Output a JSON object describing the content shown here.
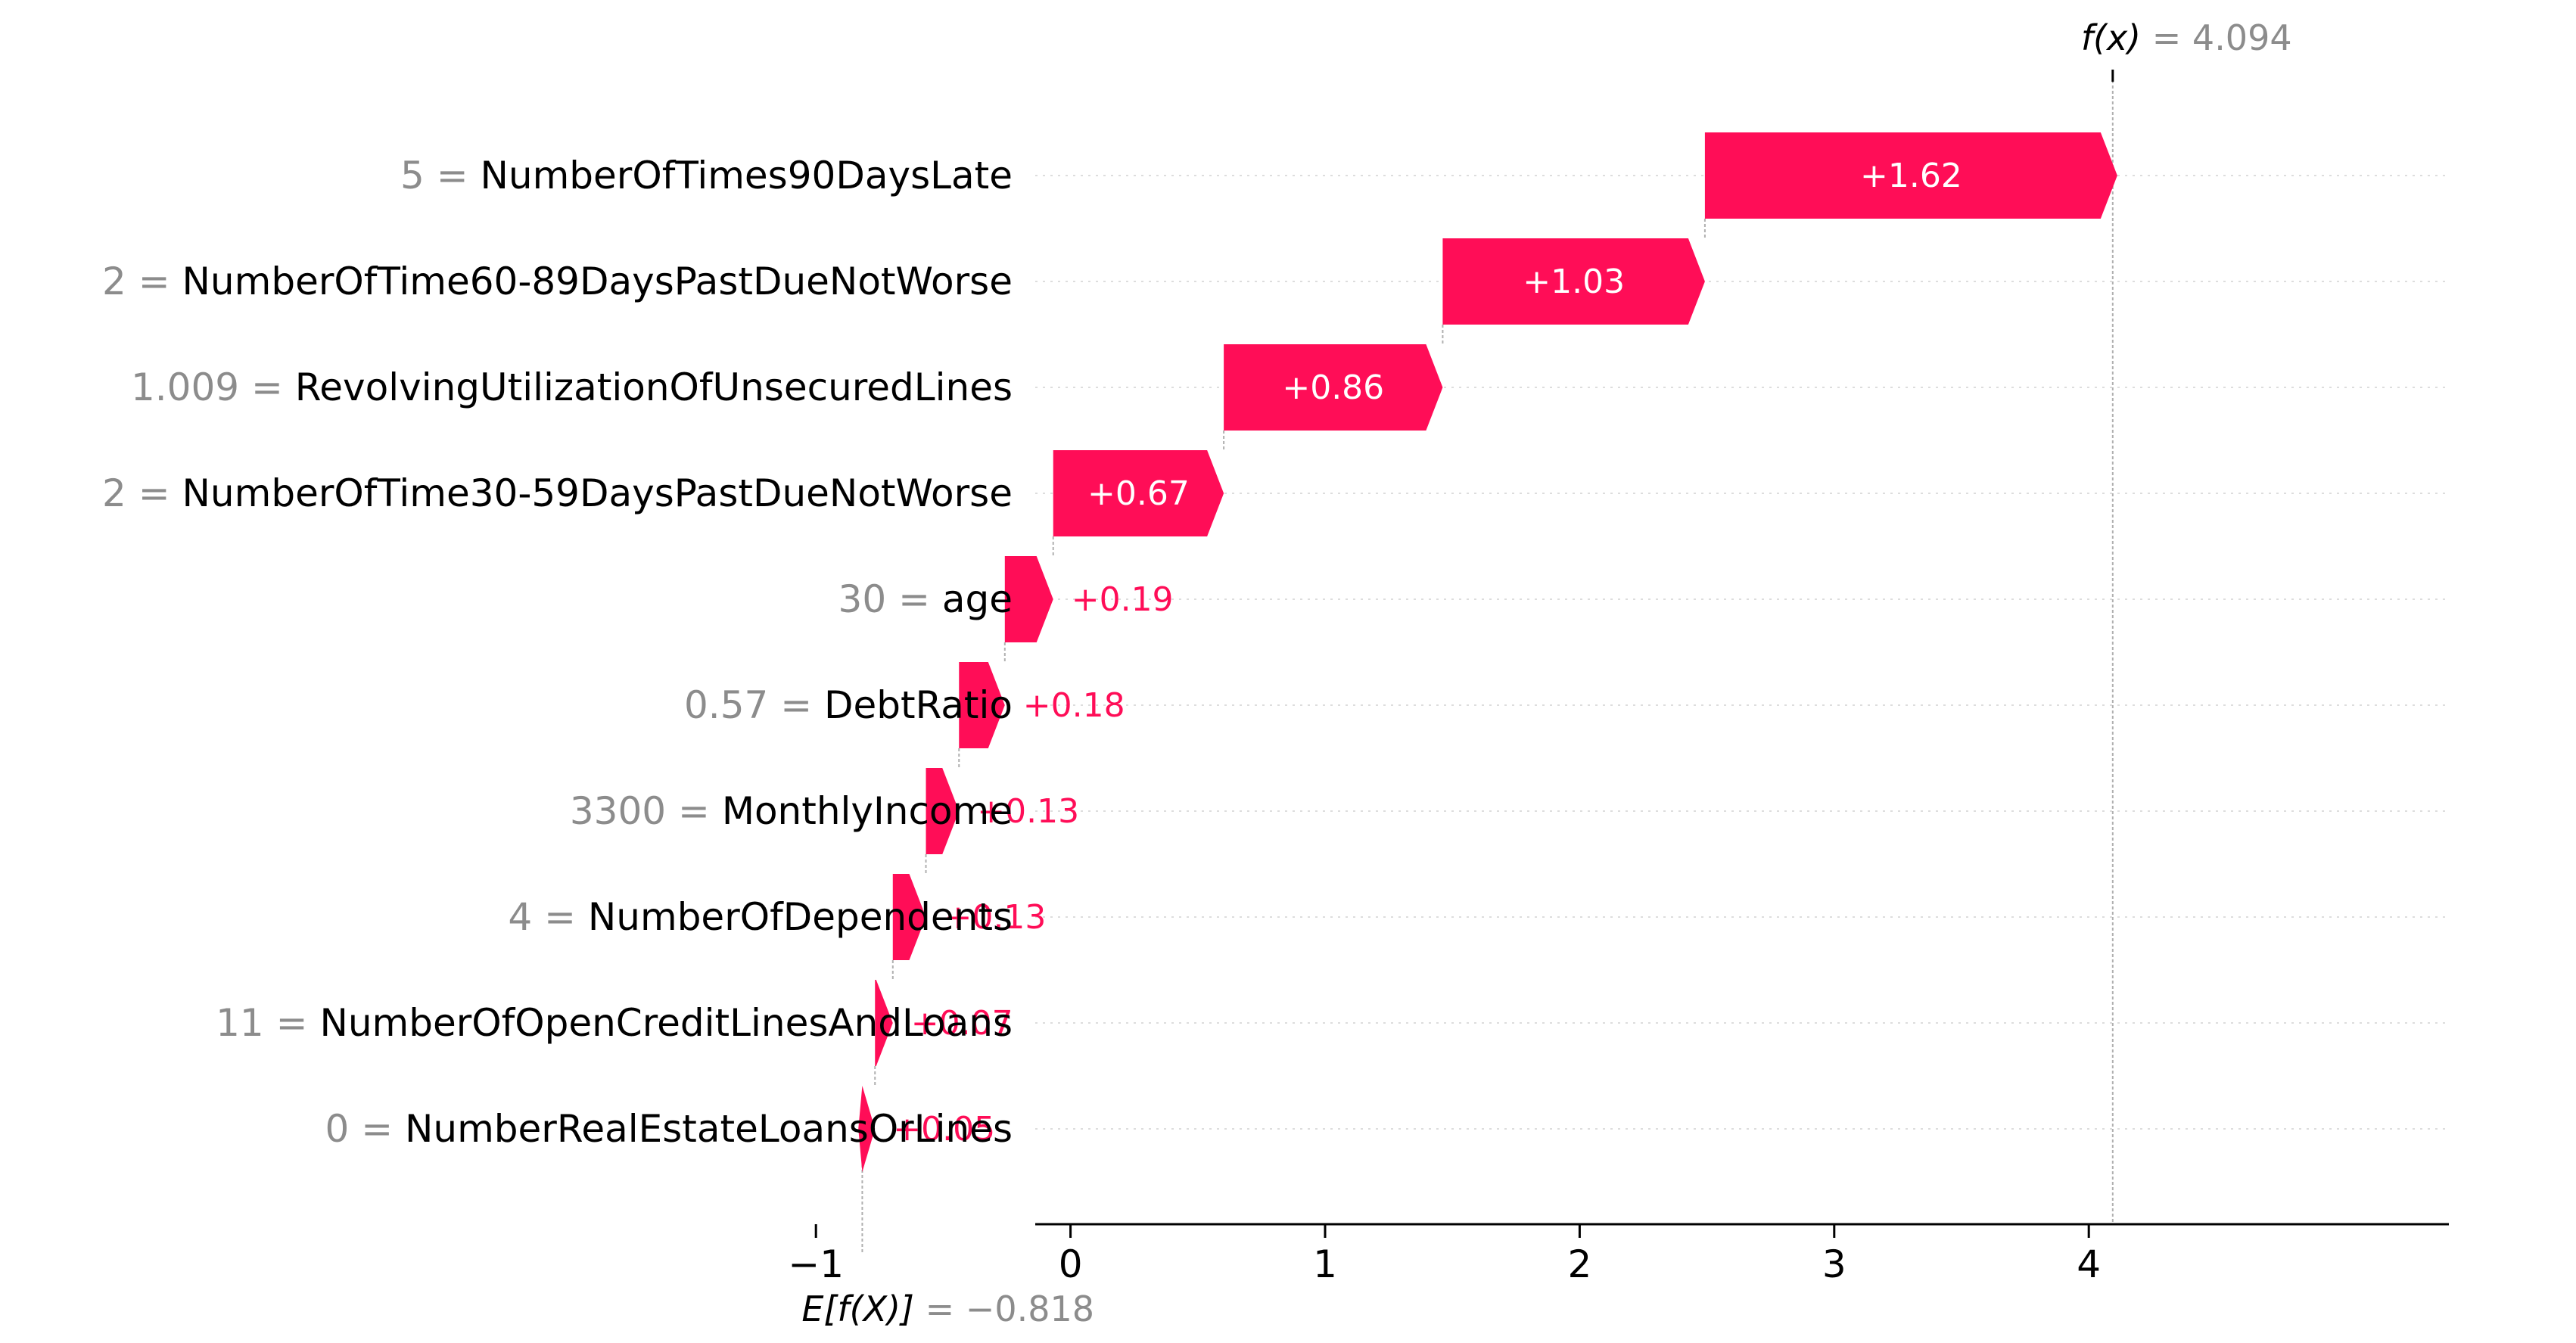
{
  "chart_data": {
    "type": "bar",
    "subtype": "waterfall",
    "grid": "horizontal dotted row guides",
    "base_value": -0.818,
    "base_label": {
      "prefix": "E[f(X)]",
      "eq": "=",
      "value_text": "−0.818"
    },
    "output_value": 4.094,
    "output_label": {
      "prefix": "f(x)",
      "eq": "=",
      "value_text": "4.094"
    },
    "xlim": [
      -1.15,
      4.4
    ],
    "xticks": [
      -1,
      0,
      1,
      2,
      3,
      4
    ],
    "xtick_labels": [
      "−1",
      "0",
      "1",
      "2",
      "3",
      "4"
    ],
    "colors": {
      "positive": "#ff0d57",
      "grid": "#d0d0d0",
      "value_gray": "#8c8c8c"
    },
    "features": [
      {
        "value": "5",
        "name": "NumberOfTimes90DaysLate",
        "shap": 1.62,
        "label": "+1.62"
      },
      {
        "value": "2",
        "name": "NumberOfTime60-89DaysPastDueNotWorse",
        "shap": 1.03,
        "label": "+1.03"
      },
      {
        "value": "1.009",
        "name": "RevolvingUtilizationOfUnsecuredLines",
        "shap": 0.86,
        "label": "+0.86"
      },
      {
        "value": "2",
        "name": "NumberOfTime30-59DaysPastDueNotWorse",
        "shap": 0.67,
        "label": "+0.67"
      },
      {
        "value": "30",
        "name": "age",
        "shap": 0.19,
        "label": "+0.19"
      },
      {
        "value": "0.57",
        "name": "DebtRatio",
        "shap": 0.18,
        "label": "+0.18"
      },
      {
        "value": "3300",
        "name": "MonthlyIncome",
        "shap": 0.13,
        "label": "+0.13"
      },
      {
        "value": "4",
        "name": "NumberOfDependents",
        "shap": 0.13,
        "label": "+0.13"
      },
      {
        "value": "11",
        "name": "NumberOfOpenCreditLinesAndLoans",
        "shap": 0.07,
        "label": "+0.07"
      },
      {
        "value": "0",
        "name": "NumberRealEstateLoansOrLines",
        "shap": 0.05,
        "label": "+0.05"
      }
    ]
  }
}
